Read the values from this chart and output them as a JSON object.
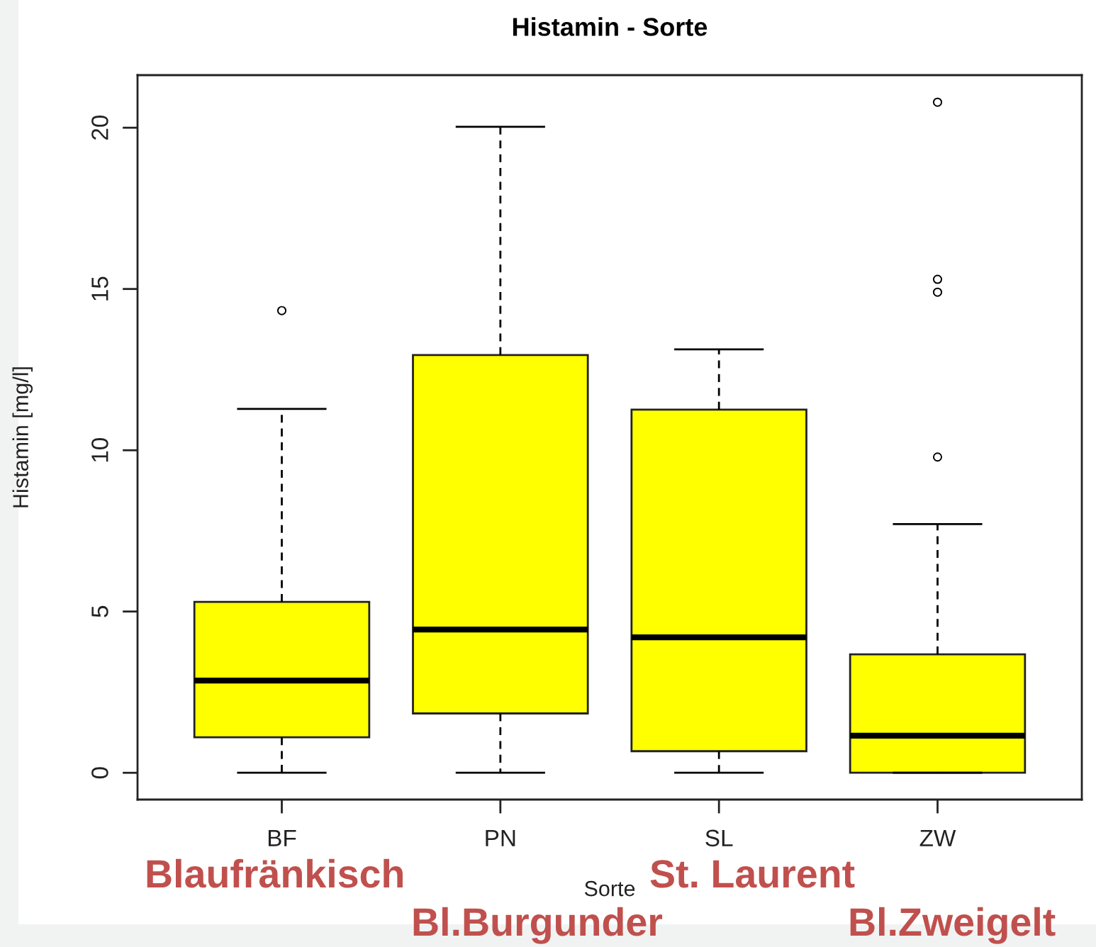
{
  "chart_data": {
    "type": "box",
    "title": "Histamin - Sorte",
    "xlabel": "Sorte",
    "ylabel": "Histamin [mg/l]",
    "categories": [
      "BF",
      "PN",
      "SL",
      "ZW"
    ],
    "color": "#ffff00",
    "marker": "circle",
    "boxes": [
      {
        "low": 0,
        "q1": 1.1,
        "median": 2.86,
        "q3": 5.3,
        "high": 11.28,
        "outliers": [
          14.33
        ]
      },
      {
        "low": 0,
        "q1": 1.84,
        "median": 4.44,
        "q3": 12.95,
        "high": 20.03
      },
      {
        "low": 0,
        "q1": 0.67,
        "median": 4.2,
        "q3": 11.26,
        "high": 13.13
      },
      {
        "low": 0,
        "q1": 0,
        "median": 1.15,
        "q3": 3.67,
        "high": 7.71,
        "outliers": [
          9.79,
          14.9,
          15.3,
          20.79
        ]
      }
    ],
    "ylim": [
      -0.83,
      21.63
    ],
    "yticks": [
      0,
      5,
      10,
      15,
      20
    ],
    "annotations": [
      "Blaufränkisch",
      "Bl.Burgunder",
      "St. Laurent",
      "Bl.Zweigelt"
    ]
  }
}
